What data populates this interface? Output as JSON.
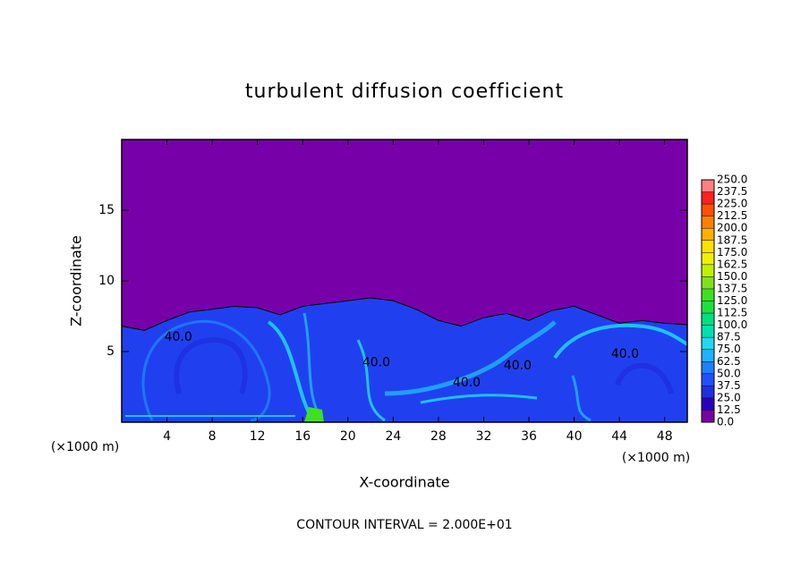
{
  "chart_data": {
    "type": "contour",
    "title": "turbulent diffusion coefficient",
    "x_label": "X-coordinate",
    "y_label": "Z-coordinate",
    "x_unit": "(×1000 m)",
    "y_unit": "(×1000 m)",
    "footer": "CONTOUR INTERVAL = 2.000E+01",
    "xlim": [
      0,
      50
    ],
    "ylim": [
      0,
      20
    ],
    "xticks": [
      4,
      8,
      12,
      16,
      20,
      24,
      28,
      32,
      36,
      40,
      44,
      48
    ],
    "yticks": [
      5,
      10,
      15
    ],
    "background_color": "#7800a8",
    "turbulent_layer": {
      "color": "#2040f0",
      "x": [
        0,
        2,
        4,
        6,
        8,
        10,
        12,
        14,
        16,
        18,
        20,
        22,
        24,
        26,
        28,
        30,
        32,
        34,
        36,
        38,
        40,
        42,
        44,
        46,
        48,
        50
      ],
      "top": [
        6.8,
        6.5,
        7.2,
        7.8,
        8.0,
        8.2,
        8.1,
        7.6,
        8.2,
        8.4,
        8.6,
        8.8,
        8.6,
        8.0,
        7.2,
        6.8,
        7.4,
        7.7,
        7.2,
        7.9,
        8.2,
        7.6,
        7.0,
        7.2,
        7.0,
        6.9
      ]
    },
    "contour_labels": [
      {
        "x": 5,
        "y": 6,
        "label": "40.0"
      },
      {
        "x": 22.5,
        "y": 4.2,
        "label": "40.0"
      },
      {
        "x": 30.5,
        "y": 2.8,
        "label": "40.0"
      },
      {
        "x": 35,
        "y": 4,
        "label": "40.0"
      },
      {
        "x": 44.5,
        "y": 4.8,
        "label": "40.0"
      }
    ],
    "colorbar": {
      "levels": [
        {
          "value": 0,
          "label": "0.0"
        },
        {
          "value": 12.5,
          "label": "12.5"
        },
        {
          "value": 25,
          "label": "25.0"
        },
        {
          "value": 37.5,
          "label": "37.5"
        },
        {
          "value": 50,
          "label": "50.0"
        },
        {
          "value": 62.5,
          "label": "62.5"
        },
        {
          "value": 75,
          "label": "75.0"
        },
        {
          "value": 87.5,
          "label": "87.5"
        },
        {
          "value": 100,
          "label": "100.0"
        },
        {
          "value": 112.5,
          "label": "112.5"
        },
        {
          "value": 125,
          "label": "125.0"
        },
        {
          "value": 137.5,
          "label": "137.5"
        },
        {
          "value": 150,
          "label": "150.0"
        },
        {
          "value": 162.5,
          "label": "162.5"
        },
        {
          "value": 175,
          "label": "175.0"
        },
        {
          "value": 187.5,
          "label": "187.5"
        },
        {
          "value": 200,
          "label": "200.0"
        },
        {
          "value": 212.5,
          "label": "212.5"
        },
        {
          "value": 225,
          "label": "225.0"
        },
        {
          "value": 237.5,
          "label": "237.5"
        },
        {
          "value": 250,
          "label": "250.0"
        }
      ],
      "colors": [
        "#7800a8",
        "#2a00c0",
        "#1f2fe0",
        "#2050ff",
        "#1f80ff",
        "#20b0ff",
        "#20d8f0",
        "#00e0b0",
        "#00e080",
        "#20e040",
        "#40e020",
        "#80e020",
        "#c0f000",
        "#f0f000",
        "#ffe000",
        "#ffb000",
        "#ff8000",
        "#ff5000",
        "#ff2020",
        "#ff8080"
      ]
    }
  }
}
